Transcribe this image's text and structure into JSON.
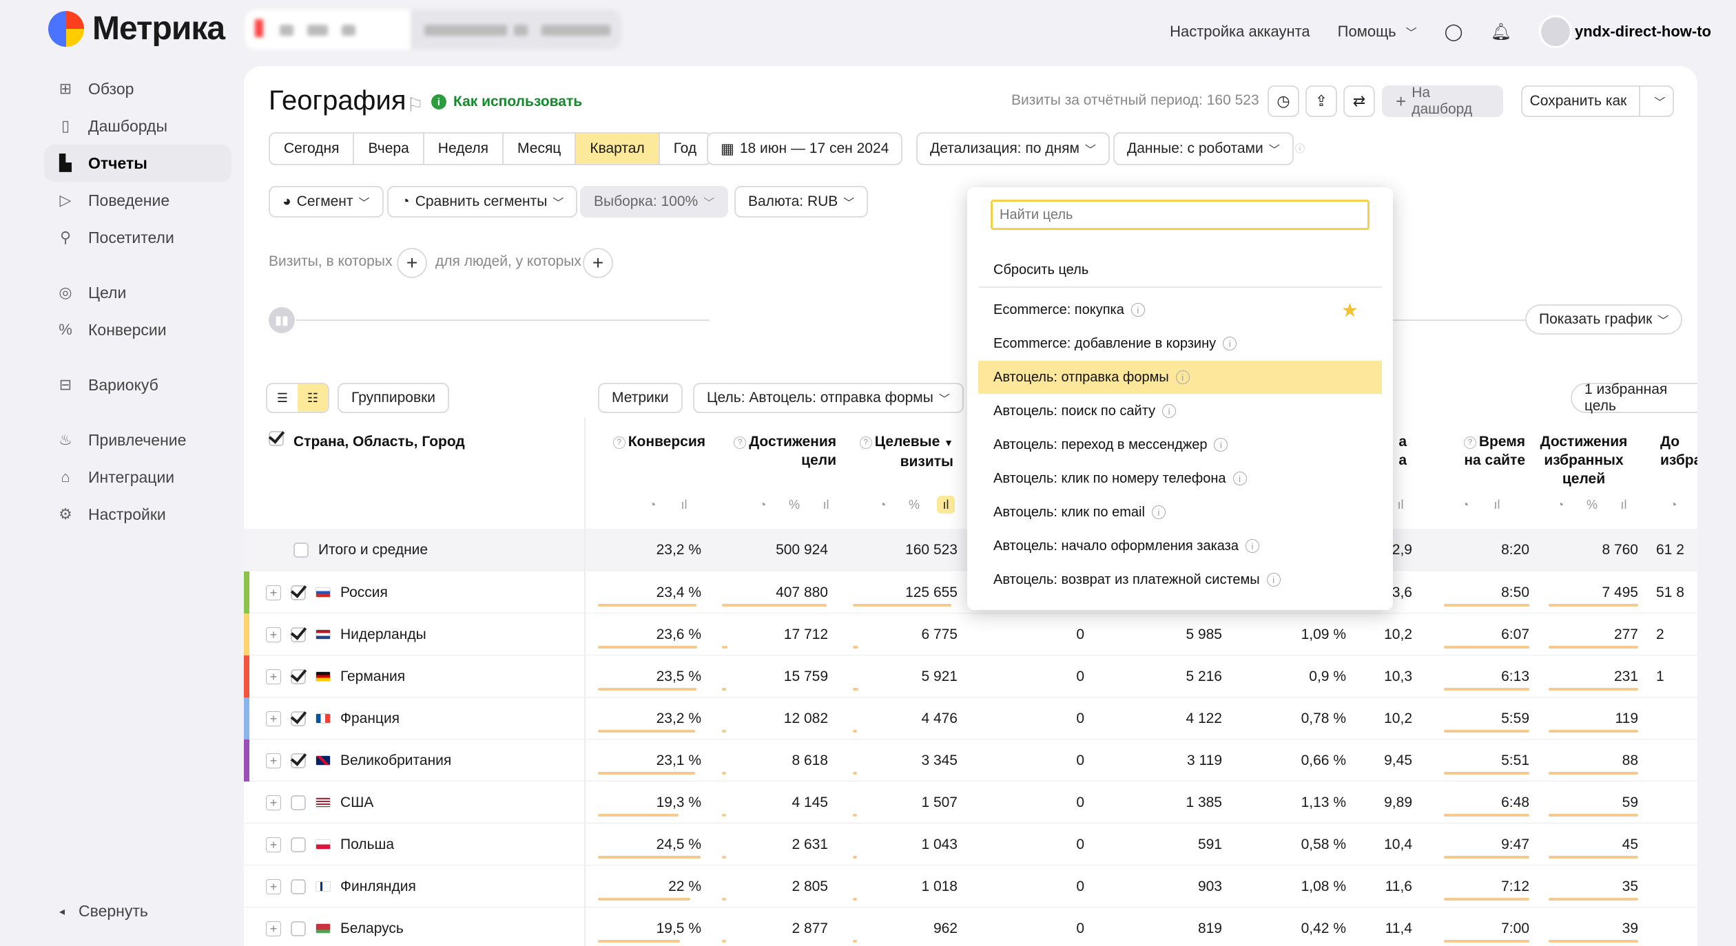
{
  "app": {
    "name": "Метрика"
  },
  "topnav": {
    "settings": "Настройка аккаунта",
    "help": "Помощь",
    "user": "yndx-direct-how-to"
  },
  "sidebar": {
    "items": [
      {
        "label": "Обзор",
        "icon": "grid-icon"
      },
      {
        "label": "Дашборды",
        "icon": "dashboards-icon"
      },
      {
        "label": "Отчеты",
        "icon": "reports-icon",
        "active": true
      },
      {
        "label": "Поведение",
        "icon": "play-icon"
      },
      {
        "label": "Посетители",
        "icon": "user-icon"
      },
      {
        "label": "Цели",
        "icon": "target-icon"
      },
      {
        "label": "Конверсии",
        "icon": "percent-icon"
      },
      {
        "label": "Вариокуб",
        "icon": "cube-icon"
      },
      {
        "label": "Привлечение",
        "icon": "fire-icon"
      },
      {
        "label": "Интеграции",
        "icon": "puzzle-icon"
      },
      {
        "label": "Настройки",
        "icon": "gear-icon"
      }
    ],
    "collapse": "Свернуть"
  },
  "header": {
    "title": "География",
    "howto": "Как использовать",
    "visits": "Визиты за отчётный период: 160 523",
    "dashboard_btn": "На дашборд",
    "save_btn": "Сохранить как"
  },
  "filters": {
    "periods": [
      "Сегодня",
      "Вчера",
      "Неделя",
      "Месяц",
      "Квартал",
      "Год"
    ],
    "selected_period": "Квартал",
    "date_range": "18 июн — 17 сен 2024",
    "detail": "Детализация: по дням",
    "data": "Данные: с роботами",
    "segment": "Сегмент",
    "compare": "Сравнить сегменты",
    "sample": "Выборка: 100%",
    "currency": "Валюта: RUB",
    "visits_where": "Визиты, в которых",
    "people_where": "для людей, у которых",
    "show_chart": "Показать график"
  },
  "toolbar": {
    "groupings": "Группировки",
    "metrics": "Метрики",
    "goal": "Цель: Автоцель: отправка формы",
    "favorites": "1 избранная цель"
  },
  "columns": {
    "dim": "Страна, Область, Город",
    "conversion": "Конверсия",
    "goal_reach_1": "Достижения",
    "goal_reach_2": "цели",
    "target_visits_1": "Целевые",
    "target_visits_2": "визиты",
    "time_1": "Время",
    "time_2": "на сайте",
    "fav_reach_1": "Достижения",
    "fav_reach_2": "избранных",
    "fav_reach_3": "целей",
    "cut_1": "До",
    "cut_2": "избра",
    "partial_1": "а",
    "partial_2": "а"
  },
  "totals": {
    "label": "Итого и средние",
    "conv": "23,2 %",
    "reach": "500 924",
    "visits": "160 523",
    "c4": "",
    "c5": "",
    "c6": "",
    "c7": "2,9",
    "time": "8:20",
    "fav": "8 760",
    "cut": "61 2"
  },
  "rows": [
    {
      "name": "Россия",
      "checked": true,
      "color": "#8bc34a",
      "flag": "ru",
      "conv": "23,4 %",
      "reach": "407 880",
      "visits": "125 655",
      "c4": "",
      "c5": "",
      "c6": "",
      "c7": "3,6",
      "time": "8:50",
      "fav": "7 495",
      "cut": "51 8",
      "bars": [
        0.95,
        0.95,
        0.95
      ]
    },
    {
      "name": "Нидерланды",
      "checked": true,
      "color": "#ffd36b",
      "flag": "nl",
      "conv": "23,6 %",
      "reach": "17 712",
      "visits": "6 775",
      "c4": "0",
      "c5": "5 985",
      "c6": "1,09 %",
      "c7": "10,2",
      "time": "6:07",
      "fav": "277",
      "cut": "2",
      "bars": [
        0.96,
        0.05,
        0.05
      ]
    },
    {
      "name": "Германия",
      "checked": true,
      "color": "#f2543d",
      "flag": "de",
      "conv": "23,5 %",
      "reach": "15 759",
      "visits": "5 921",
      "c4": "0",
      "c5": "5 216",
      "c6": "0,9 %",
      "c7": "10,3",
      "time": "6:13",
      "fav": "231",
      "cut": "1",
      "bars": [
        0.95,
        0.04,
        0.05
      ]
    },
    {
      "name": "Франция",
      "checked": true,
      "color": "#8ab4f0",
      "flag": "fr",
      "conv": "23,2 %",
      "reach": "12 082",
      "visits": "4 476",
      "c4": "0",
      "c5": "4 122",
      "c6": "0,78 %",
      "c7": "10,2",
      "time": "5:59",
      "fav": "119",
      "cut": "",
      "bars": [
        0.94,
        0.03,
        0.04
      ]
    },
    {
      "name": "Великобритания",
      "checked": true,
      "color": "#9c4fb8",
      "flag": "gb",
      "conv": "23,1 %",
      "reach": "8 618",
      "visits": "3 345",
      "c4": "0",
      "c5": "3 119",
      "c6": "0,66 %",
      "c7": "9,45",
      "time": "5:51",
      "fav": "88",
      "cut": "",
      "bars": [
        0.94,
        0.02,
        0.03
      ]
    },
    {
      "name": "США",
      "checked": false,
      "color": "",
      "flag": "us",
      "conv": "19,3 %",
      "reach": "4 145",
      "visits": "1 507",
      "c4": "0",
      "c5": "1 385",
      "c6": "1,13 %",
      "c7": "9,89",
      "time": "6:48",
      "fav": "59",
      "cut": "",
      "bars": [
        0.78,
        0.01,
        0.01
      ]
    },
    {
      "name": "Польша",
      "checked": false,
      "color": "",
      "flag": "pl",
      "conv": "24,5 %",
      "reach": "2 631",
      "visits": "1 043",
      "c4": "0",
      "c5": "591",
      "c6": "0,58 %",
      "c7": "10,4",
      "time": "9:47",
      "fav": "45",
      "cut": "",
      "bars": [
        0.99,
        0.01,
        0.01
      ]
    },
    {
      "name": "Финляндия",
      "checked": false,
      "color": "",
      "flag": "fi",
      "conv": "22 %",
      "reach": "2 805",
      "visits": "1 018",
      "c4": "0",
      "c5": "903",
      "c6": "1,08 %",
      "c7": "11,6",
      "time": "7:12",
      "fav": "35",
      "cut": "",
      "bars": [
        0.89,
        0.01,
        0.01
      ]
    },
    {
      "name": "Беларусь",
      "checked": false,
      "color": "",
      "flag": "by",
      "conv": "19,5 %",
      "reach": "2 877",
      "visits": "962",
      "c4": "0",
      "c5": "819",
      "c6": "0,42 %",
      "c7": "11,4",
      "time": "7:00",
      "fav": "39",
      "cut": "",
      "bars": [
        0.79,
        0.01,
        0.01
      ]
    }
  ],
  "dropdown": {
    "placeholder": "Найти цель",
    "reset": "Сбросить цель",
    "items": [
      {
        "label": "Ecommerce: покупка",
        "star": true
      },
      {
        "label": "Ecommerce: добавление в корзину"
      },
      {
        "label": "Автоцель: отправка формы",
        "selected": true
      },
      {
        "label": "Автоцель: поиск по сайту"
      },
      {
        "label": "Автоцель: переход в мессенджер"
      },
      {
        "label": "Автоцель: клик по номеру телефона"
      },
      {
        "label": "Автоцель: клик по email"
      },
      {
        "label": "Автоцель: начало оформления заказа"
      },
      {
        "label": "Автоцель: возврат из платежной системы"
      }
    ]
  },
  "colors": {
    "accent_yellow": "#fde99a",
    "bar": "#f6c98f",
    "green_link": "#138a2b"
  }
}
